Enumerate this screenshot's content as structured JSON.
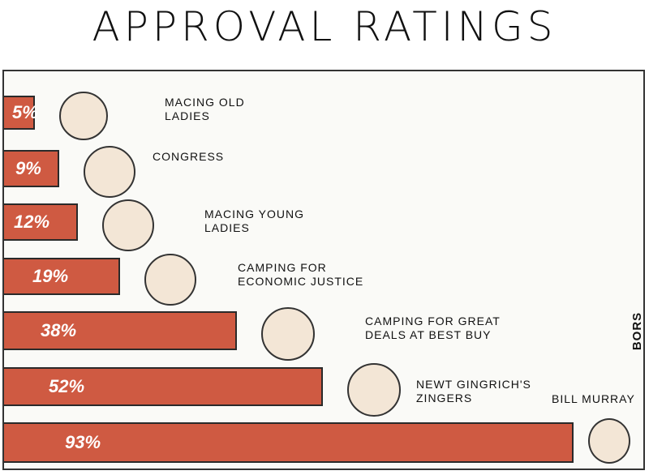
{
  "chart_data": {
    "type": "bar",
    "orientation": "horizontal",
    "title": "APPROVAL RATINGS",
    "credit": "BORS",
    "categories": [
      "MACING OLD LADIES",
      "CONGRESS",
      "MACING YOUNG LADIES",
      "CAMPING FOR ECONOMIC JUSTICE",
      "CAMPING FOR GREAT DEALS AT BEST BUY",
      "NEWT GINGRICH'S ZINGERS",
      "BILL MURRAY"
    ],
    "values": [
      5,
      9,
      12,
      19,
      38,
      52,
      93
    ],
    "value_labels": [
      "5%",
      "9%",
      "12%",
      "19%",
      "38%",
      "52%",
      "93%"
    ],
    "color": "#cf5a42",
    "xlim": [
      0,
      100
    ]
  }
}
